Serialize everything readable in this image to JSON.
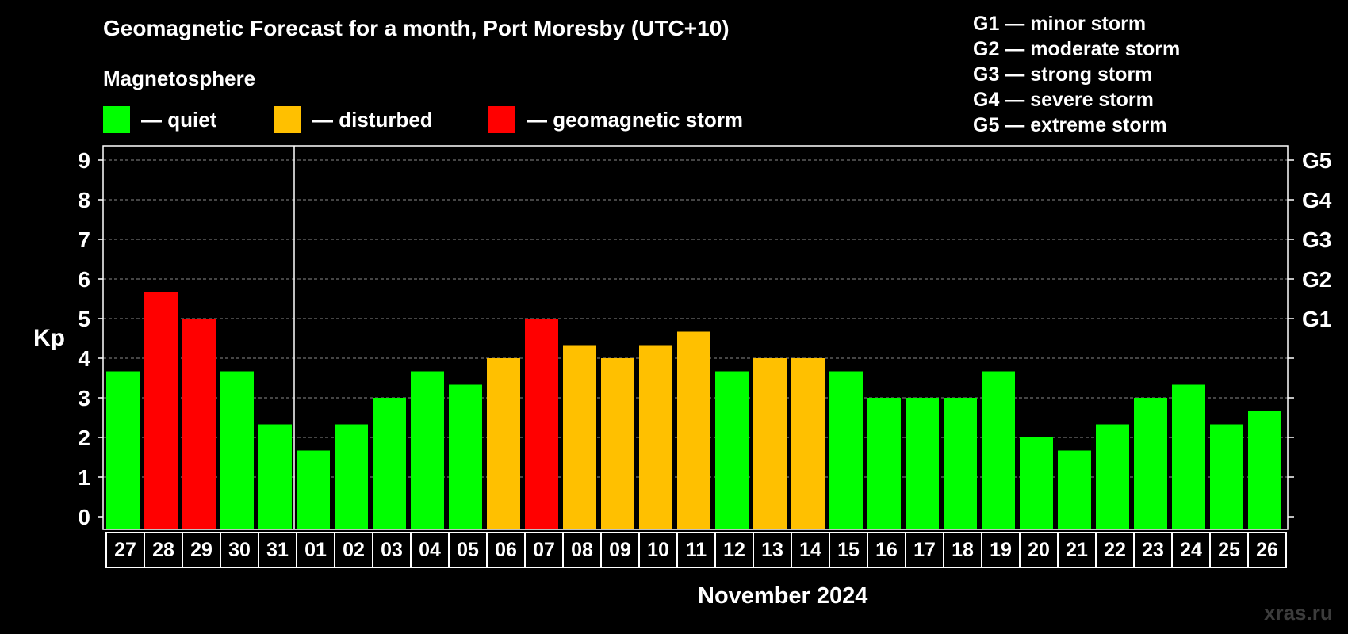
{
  "title": "Geomagnetic Forecast for a month, Port Moresby (UTC+10)",
  "legend": {
    "heading": "Magnetosphere",
    "items": [
      {
        "label": "— quiet",
        "color": "#00ff00"
      },
      {
        "label": "— disturbed",
        "color": "#ffc000"
      },
      {
        "label": "— geomagnetic storm",
        "color": "#ff0000"
      }
    ]
  },
  "g_scale": [
    "G1 — minor storm",
    "G2 — moderate storm",
    "G3 — strong storm",
    "G4 — severe storm",
    "G5 — extreme storm"
  ],
  "watermark": "xras.ru",
  "colors": {
    "quiet": "#00ff00",
    "disturbed": "#ffc000",
    "storm": "#ff0000",
    "background": "#000000",
    "axis": "#ffffff"
  },
  "chart_data": {
    "type": "bar",
    "ylabel": "Kp",
    "xlabel": "November 2024",
    "ylim": [
      0,
      9
    ],
    "yticks": [
      "0",
      "1",
      "2",
      "3",
      "4",
      "5",
      "6",
      "7",
      "8",
      "9"
    ],
    "right_axis_ticks": [
      {
        "value": 5,
        "label": "G1"
      },
      {
        "value": 6,
        "label": "G2"
      },
      {
        "value": 7,
        "label": "G3"
      },
      {
        "value": 8,
        "label": "G4"
      },
      {
        "value": 9,
        "label": "G5"
      }
    ],
    "grid": "dashed horizontal",
    "month_divider_after": "31",
    "categories": [
      "27",
      "28",
      "29",
      "30",
      "31",
      "01",
      "02",
      "03",
      "04",
      "05",
      "06",
      "07",
      "08",
      "09",
      "10",
      "11",
      "12",
      "13",
      "14",
      "15",
      "16",
      "17",
      "18",
      "19",
      "20",
      "21",
      "22",
      "23",
      "24",
      "25",
      "26"
    ],
    "values": [
      3.67,
      5.67,
      5.0,
      3.67,
      2.33,
      1.67,
      2.33,
      3.0,
      3.67,
      3.33,
      4.0,
      5.0,
      4.33,
      4.0,
      4.33,
      4.67,
      3.67,
      4.0,
      4.0,
      3.67,
      3.0,
      3.0,
      3.0,
      3.67,
      2.0,
      1.67,
      2.33,
      3.0,
      3.33,
      2.33,
      2.67
    ],
    "status": [
      "quiet",
      "storm",
      "storm",
      "quiet",
      "quiet",
      "quiet",
      "quiet",
      "quiet",
      "quiet",
      "quiet",
      "disturbed",
      "storm",
      "disturbed",
      "disturbed",
      "disturbed",
      "disturbed",
      "quiet",
      "disturbed",
      "disturbed",
      "quiet",
      "quiet",
      "quiet",
      "quiet",
      "quiet",
      "quiet",
      "quiet",
      "quiet",
      "quiet",
      "quiet",
      "quiet",
      "quiet"
    ]
  }
}
